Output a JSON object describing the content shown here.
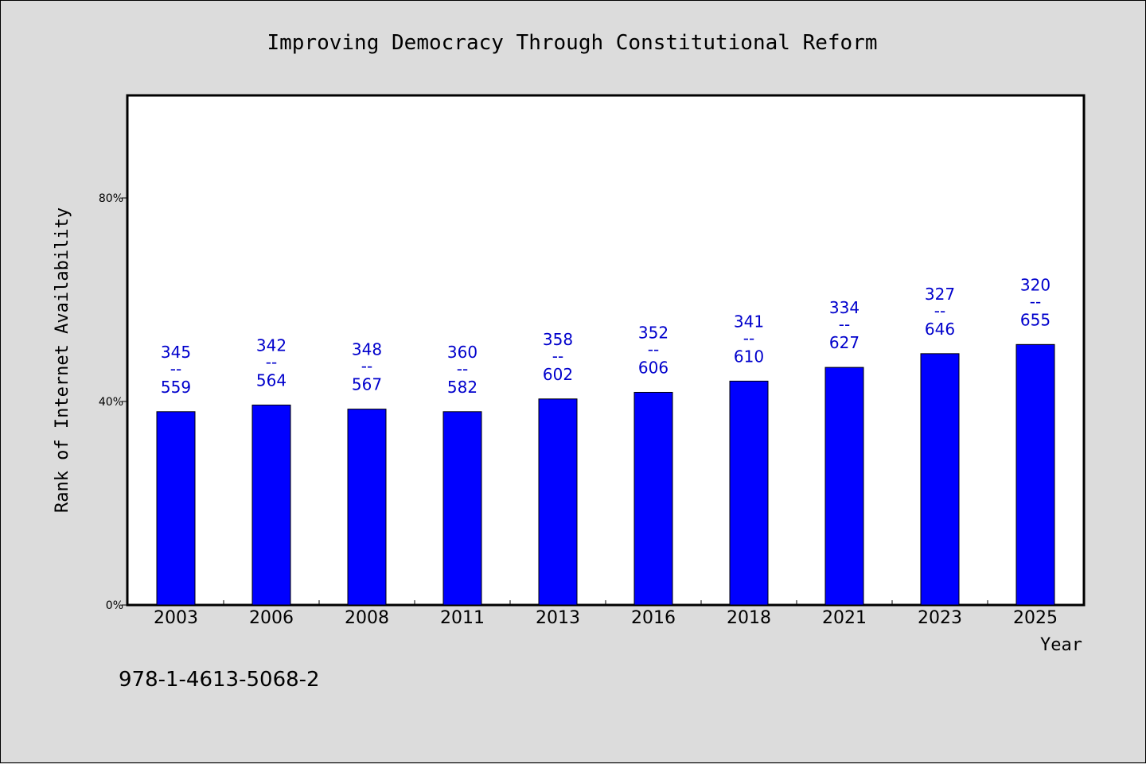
{
  "chart_data": {
    "type": "bar",
    "title": "Improving Democracy Through Constitutional Reform",
    "xlabel": "Year",
    "ylabel": "Rank of Internet Availability",
    "ylim": [
      0,
      100
    ],
    "yticks": [
      {
        "value": 0,
        "label": "0%"
      },
      {
        "value": 40,
        "label": "40%"
      },
      {
        "value": 80,
        "label": "80%"
      }
    ],
    "categories": [
      "2003",
      "2006",
      "2008",
      "2011",
      "2013",
      "2016",
      "2018",
      "2021",
      "2023",
      "2025"
    ],
    "values": [
      38.0,
      39.3,
      38.5,
      38.0,
      40.5,
      41.8,
      44.0,
      46.7,
      49.4,
      51.2
    ],
    "labels_top": [
      "345",
      "342",
      "348",
      "360",
      "358",
      "352",
      "341",
      "334",
      "327",
      "320"
    ],
    "labels_sep": "--",
    "labels_bottom": [
      "559",
      "564",
      "567",
      "582",
      "602",
      "606",
      "610",
      "627",
      "646",
      "655"
    ],
    "bar_color": "#0000ff",
    "label_color": "#0000cc",
    "grid": false,
    "legend": "none"
  },
  "footer": {
    "isbn": "978-1-4613-5068-2"
  }
}
